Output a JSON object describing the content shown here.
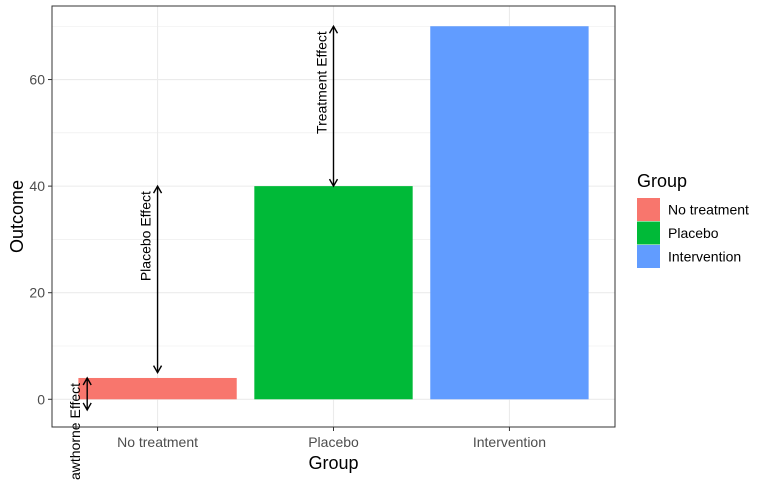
{
  "chart_data": {
    "type": "bar",
    "title": "",
    "xlabel": "Group",
    "ylabel": "Outcome",
    "categories": [
      "No treatment",
      "Placebo",
      "Intervention"
    ],
    "values": [
      4,
      40,
      70
    ],
    "colors": [
      "#F8766D",
      "#00BA38",
      "#619CFF"
    ],
    "ylim": [
      -5.2,
      73.8
    ],
    "yticks": [
      0,
      20,
      40,
      60
    ],
    "grid": true,
    "legend": {
      "title": "Group",
      "position": "right",
      "entries": [
        "No treatment",
        "Placebo",
        "Intervention"
      ]
    },
    "annotations": [
      {
        "label": "Hawthorne Effect",
        "category": "No treatment",
        "offset": -0.4,
        "from": -2,
        "to": 4
      },
      {
        "label": "Placebo Effect",
        "category": "No treatment",
        "offset": 0.0,
        "from": 5,
        "to": 40
      },
      {
        "label": "Treatment Effect",
        "category": "Placebo",
        "offset": 0.0,
        "from": 40,
        "to": 70
      }
    ]
  }
}
